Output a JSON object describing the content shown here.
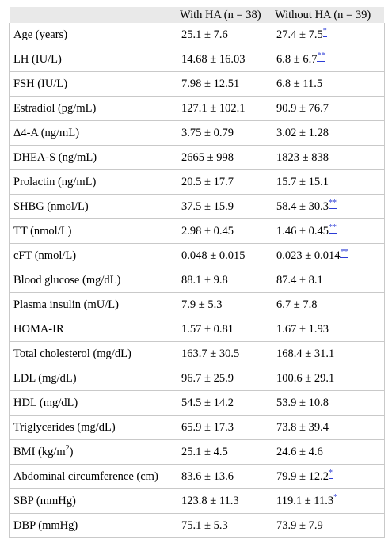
{
  "table": {
    "headers": [
      "",
      "With HA (n = 38)",
      "Without HA (n = 39)"
    ],
    "rows": [
      {
        "label": "Age (years)",
        "with_ha": "25.1 ± 7.6",
        "without_ha": "27.4 ± 7.5",
        "mark": "*"
      },
      {
        "label": "LH (IU/L)",
        "with_ha": "14.68 ± 16.03",
        "without_ha": "6.8 ± 6.7",
        "mark": "**"
      },
      {
        "label": "FSH (IU/L)",
        "with_ha": "7.98 ± 12.51",
        "without_ha": "6.8 ± 11.5",
        "mark": ""
      },
      {
        "label": "Estradiol (pg/mL)",
        "with_ha": "127.1 ± 102.1",
        "without_ha": "90.9 ± 76.7",
        "mark": ""
      },
      {
        "label": "Δ4-A (ng/mL)",
        "with_ha": "3.75 ± 0.79",
        "without_ha": "3.02 ± 1.28",
        "mark": ""
      },
      {
        "label": "DHEA-S (ng/mL)",
        "with_ha": "2665 ± 998",
        "without_ha": "1823 ± 838",
        "mark": ""
      },
      {
        "label": "Prolactin (ng/mL)",
        "with_ha": "20.5 ± 17.7",
        "without_ha": "15.7 ± 15.1",
        "mark": ""
      },
      {
        "label": "SHBG (nmol/L)",
        "with_ha": "37.5 ± 15.9",
        "without_ha": "58.4 ± 30.3",
        "mark": "**"
      },
      {
        "label": "TT (nmol/L)",
        "with_ha": "2.98 ± 0.45",
        "without_ha": "1.46 ± 0.45",
        "mark": "**"
      },
      {
        "label": "cFT (nmol/L)",
        "with_ha": "0.048 ± 0.015",
        "without_ha": "0.023 ± 0.014",
        "mark": "**"
      },
      {
        "label": "Blood glucose (mg/dL)",
        "with_ha": "88.1 ± 9.8",
        "without_ha": "87.4 ± 8.1",
        "mark": ""
      },
      {
        "label": "Plasma insulin (mU/L)",
        "with_ha": "7.9 ± 5.3",
        "without_ha": "6.7 ± 7.8",
        "mark": ""
      },
      {
        "label": "HOMA-IR",
        "with_ha": "1.57 ± 0.81",
        "without_ha": "1.67 ± 1.93",
        "mark": ""
      },
      {
        "label": "Total cholesterol (mg/dL)",
        "with_ha": "163.7 ± 30.5",
        "without_ha": "168.4 ± 31.1",
        "mark": ""
      },
      {
        "label": "LDL (mg/dL)",
        "with_ha": "96.7 ± 25.9",
        "without_ha": "100.6 ± 29.1",
        "mark": ""
      },
      {
        "label": "HDL (mg/dL)",
        "with_ha": "54.5 ± 14.2",
        "without_ha": "53.9 ± 10.8",
        "mark": ""
      },
      {
        "label": "Triglycerides (mg/dL)",
        "with_ha": "65.9 ± 17.3",
        "without_ha": "73.8 ± 39.4",
        "mark": ""
      },
      {
        "label": "BMI (kg/m",
        "label_sup": "2",
        "label_after": ")",
        "with_ha": "25.1 ± 4.5",
        "without_ha": "24.6 ± 4.6",
        "mark": ""
      },
      {
        "label": "Abdominal circumference (cm)",
        "with_ha": "83.6 ± 13.6",
        "without_ha": "79.9 ± 12.2",
        "mark": "*"
      },
      {
        "label": "SBP (mmHg)",
        "with_ha": "123.8 ± 11.3",
        "without_ha": "119.1 ± 11.3",
        "mark": "*"
      },
      {
        "label": "DBP (mmHg)",
        "with_ha": "75.1 ± 5.3",
        "without_ha": "73.9 ± 7.9",
        "mark": ""
      }
    ]
  }
}
